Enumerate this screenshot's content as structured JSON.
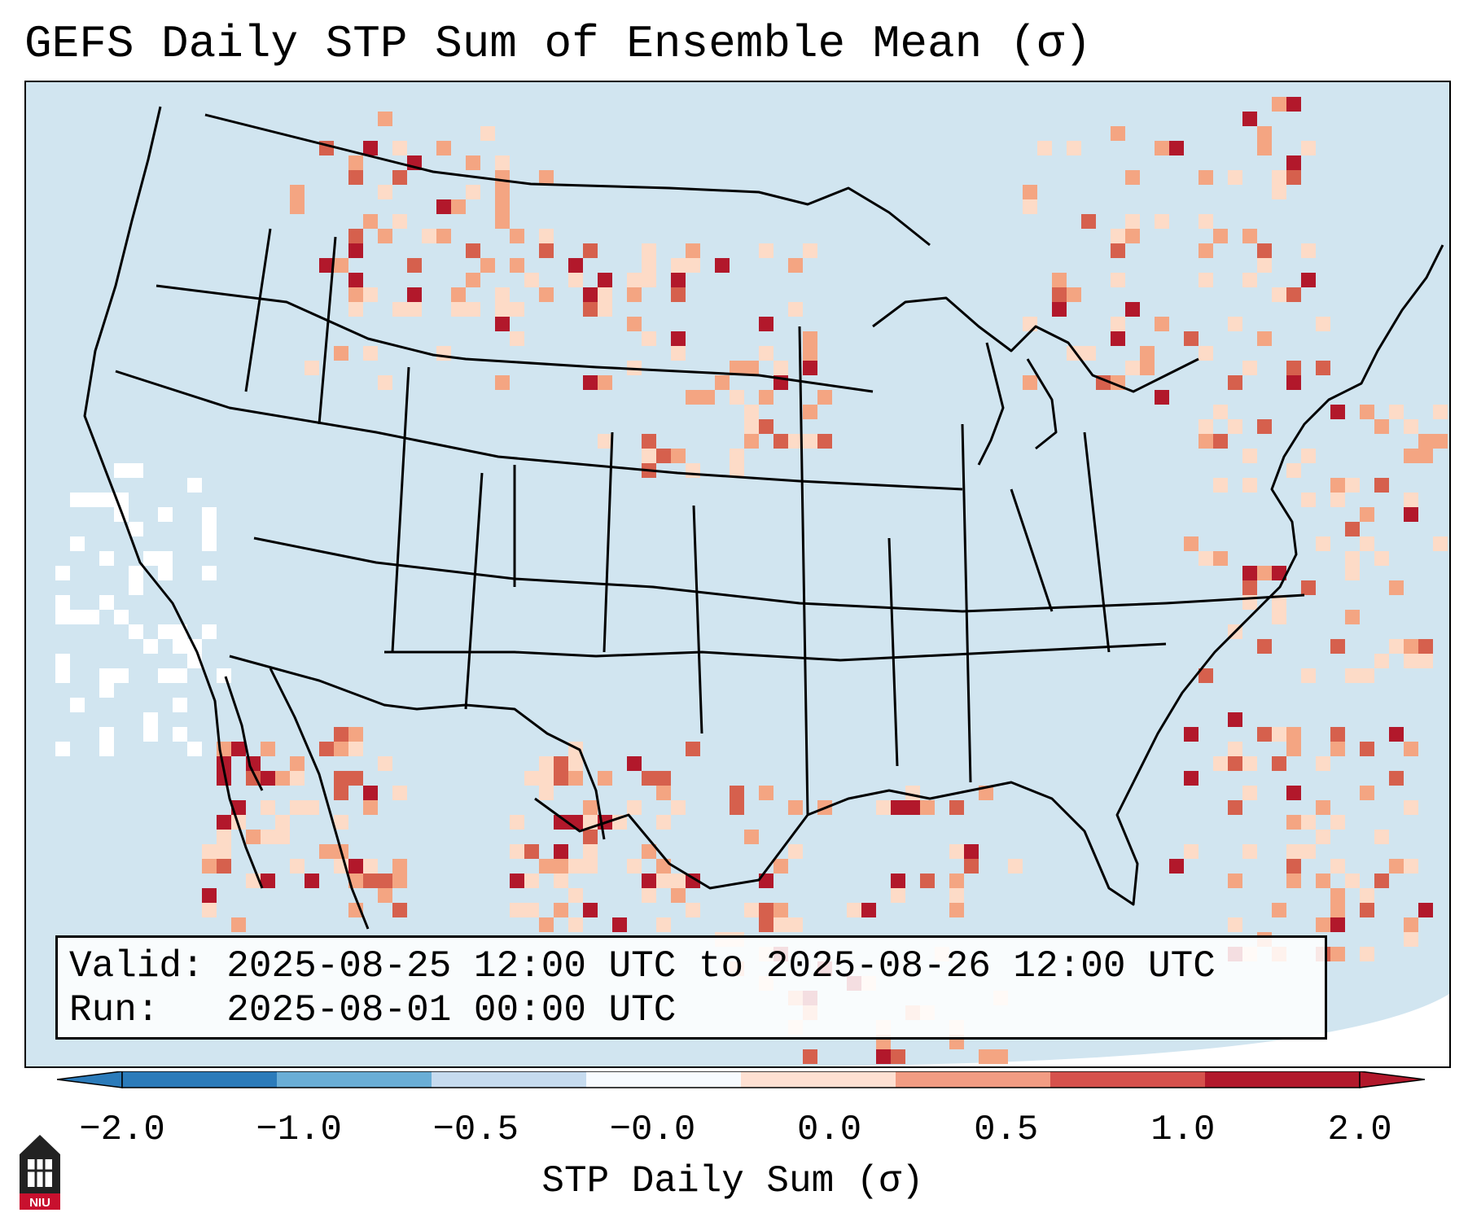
{
  "title": "GEFS Daily STP Sum of Ensemble Mean (σ)",
  "info": {
    "valid_label": "Valid:",
    "valid_value": "2025-08-25 12:00 UTC to 2025-08-26 12:00 UTC",
    "run_label": "Run:",
    "run_value": "2025-08-01 00:00 UTC"
  },
  "colorbar": {
    "label": "STP Daily Sum (σ)",
    "ticks": [
      "−2.0",
      "−1.0",
      "−0.5",
      "−0.0",
      "0.0",
      "0.5",
      "1.0",
      "2.0"
    ],
    "colors": [
      "#2b7bba",
      "#6aaed6",
      "#c6dbef",
      "#f7fbff",
      "#fee0d2",
      "#f29c83",
      "#d6514c",
      "#b2182b"
    ],
    "extend": "both"
  },
  "logo": {
    "text": "NIU"
  },
  "map": {
    "domain": "CONUS",
    "colors": {
      "background": "#d1e5f0",
      "outside": "#ffffff",
      "lines": "#000000"
    }
  }
}
